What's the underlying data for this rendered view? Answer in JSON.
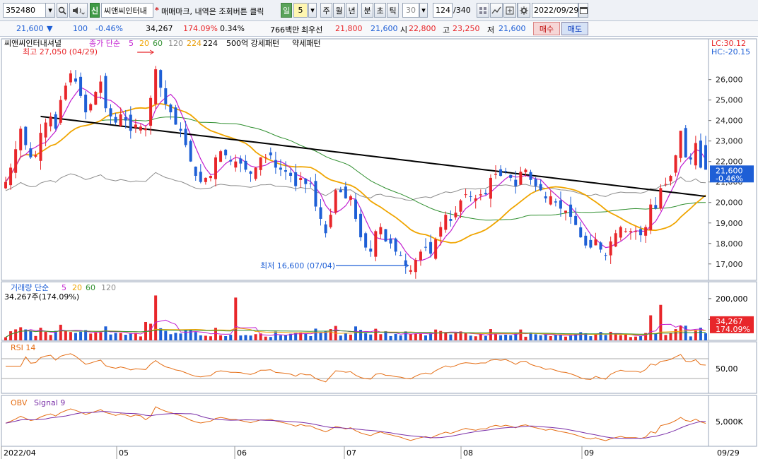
{
  "toolbar": {
    "code": "352480",
    "code_dropdown": "▾",
    "tag_new": "신",
    "stock_name": "씨앤씨인터내",
    "star_mark": "*",
    "notice": "매매마크, 내역은 조회버튼 클릭",
    "periods": [
      "일",
      "5",
      "주",
      "월",
      "년",
      "분",
      "초",
      "틱"
    ],
    "active_period": "일",
    "interval": "30",
    "count": "124",
    "total": "/340",
    "date": "2022/09/29"
  },
  "quote": {
    "price": "21,600",
    "change": "100",
    "change_pct": "-0.46%",
    "volume": "34,267",
    "volume_ratio": "174.09%",
    "turnover_rate": "0.34%",
    "amount": "766백만",
    "bid_label": "최우선",
    "ask_price": "21,800",
    "bid_price": "21,600",
    "open_label": "시",
    "open": "22,800",
    "high_label": "고",
    "high": "23,250",
    "low_label": "저",
    "low": "21,600",
    "buy_button": "매수",
    "sell_button": "매도"
  },
  "colors": {
    "up": "#e8262a",
    "down": "#1e5fd6",
    "ma5": "#c21fd0",
    "ma20": "#f0a500",
    "ma60": "#2f8f2f",
    "ma120": "#8c8c8c",
    "ma224": "#000000",
    "rsi": "#e56d13",
    "obv": "#e56d13",
    "signal": "#7a2fa8"
  },
  "price_panel": {
    "title": "씨앤씨인터내셔널",
    "ma_header": "종가 단순",
    "ma_periods": [
      "5",
      "20",
      "60",
      "120",
      "224"
    ],
    "extra": [
      "500억 강세패턴",
      "약세패턴"
    ],
    "lc": "LC:30.12",
    "hc": "HC:-20.15",
    "high_annotation": "최고 27,050 (04/29)",
    "low_annotation": "최저 16,600 (07/04)",
    "last_price": "21,600",
    "last_pct": "-0.46%"
  },
  "volume_panel": {
    "title": "거래량 단순",
    "ma_periods": [
      "5",
      "20",
      "60",
      "120"
    ],
    "current": "34,267주(174.09%)",
    "last_value": "34,267",
    "last_pct": "174.09%"
  },
  "rsi_panel": {
    "title": "RSI 14"
  },
  "obv_panel": {
    "title": "OBV",
    "signal": "Signal 9"
  },
  "x_axis": {
    "labels": [
      "2022/04",
      "05",
      "06",
      "07",
      "08",
      "09"
    ],
    "end_label": "09/29"
  },
  "chart_data": [
    {
      "type": "candlestick",
      "name": "price",
      "ylim": [
        16200,
        27400
      ],
      "y_ticks": [
        "26,000",
        "25,000",
        "24,000",
        "23,000",
        "22,000",
        "21,000",
        "20,000",
        "19,000",
        "18,000",
        "17,000"
      ],
      "high": 27050,
      "low": 16600,
      "closes": [
        21000,
        21700,
        22600,
        23600,
        22800,
        22200,
        22300,
        23400,
        23900,
        24200,
        23600,
        25000,
        25700,
        26300,
        25900,
        25200,
        24400,
        24800,
        25400,
        25900,
        24600,
        24200,
        23900,
        24300,
        24000,
        23500,
        23800,
        23700,
        23600,
        25100,
        26500,
        25600,
        24800,
        24400,
        23800,
        23500,
        22800,
        22000,
        21300,
        21000,
        21200,
        21300,
        22200,
        22500,
        22300,
        22000,
        22000,
        21900,
        21600,
        21400,
        21700,
        22200,
        22200,
        22300,
        21700,
        21600,
        21500,
        21300,
        20800,
        21200,
        20900,
        20900,
        19800,
        19200,
        18500,
        19400,
        20600,
        20500,
        20200,
        20300,
        19200,
        18300,
        17800,
        17600,
        18600,
        18800,
        18100,
        18000,
        17600,
        17400,
        16900,
        16700,
        17200,
        17600,
        17800,
        17500,
        18200,
        18800,
        19400,
        19100,
        19500,
        20100,
        20400,
        20300,
        20200,
        20400,
        20400,
        21200,
        21400,
        21300,
        21500,
        21200,
        20800,
        21500,
        21600,
        21100,
        20800,
        20600,
        20200,
        20300,
        20000,
        19700,
        19600,
        19300,
        18900,
        18300,
        17900,
        17800,
        18200,
        17700,
        17400,
        18100,
        18500,
        18800,
        18600,
        18600,
        18600,
        18400,
        18800,
        19900,
        19700,
        20700,
        20900,
        21300,
        22300,
        23500,
        22200,
        22100,
        22900,
        21700,
        21600
      ],
      "volume_ylim": [
        0,
        230000
      ],
      "volume_ticks": [
        "200,000",
        "100,000"
      ],
      "rsi_ticks": [
        "50,00"
      ],
      "obv_ticks": [
        "5,000K"
      ]
    }
  ]
}
